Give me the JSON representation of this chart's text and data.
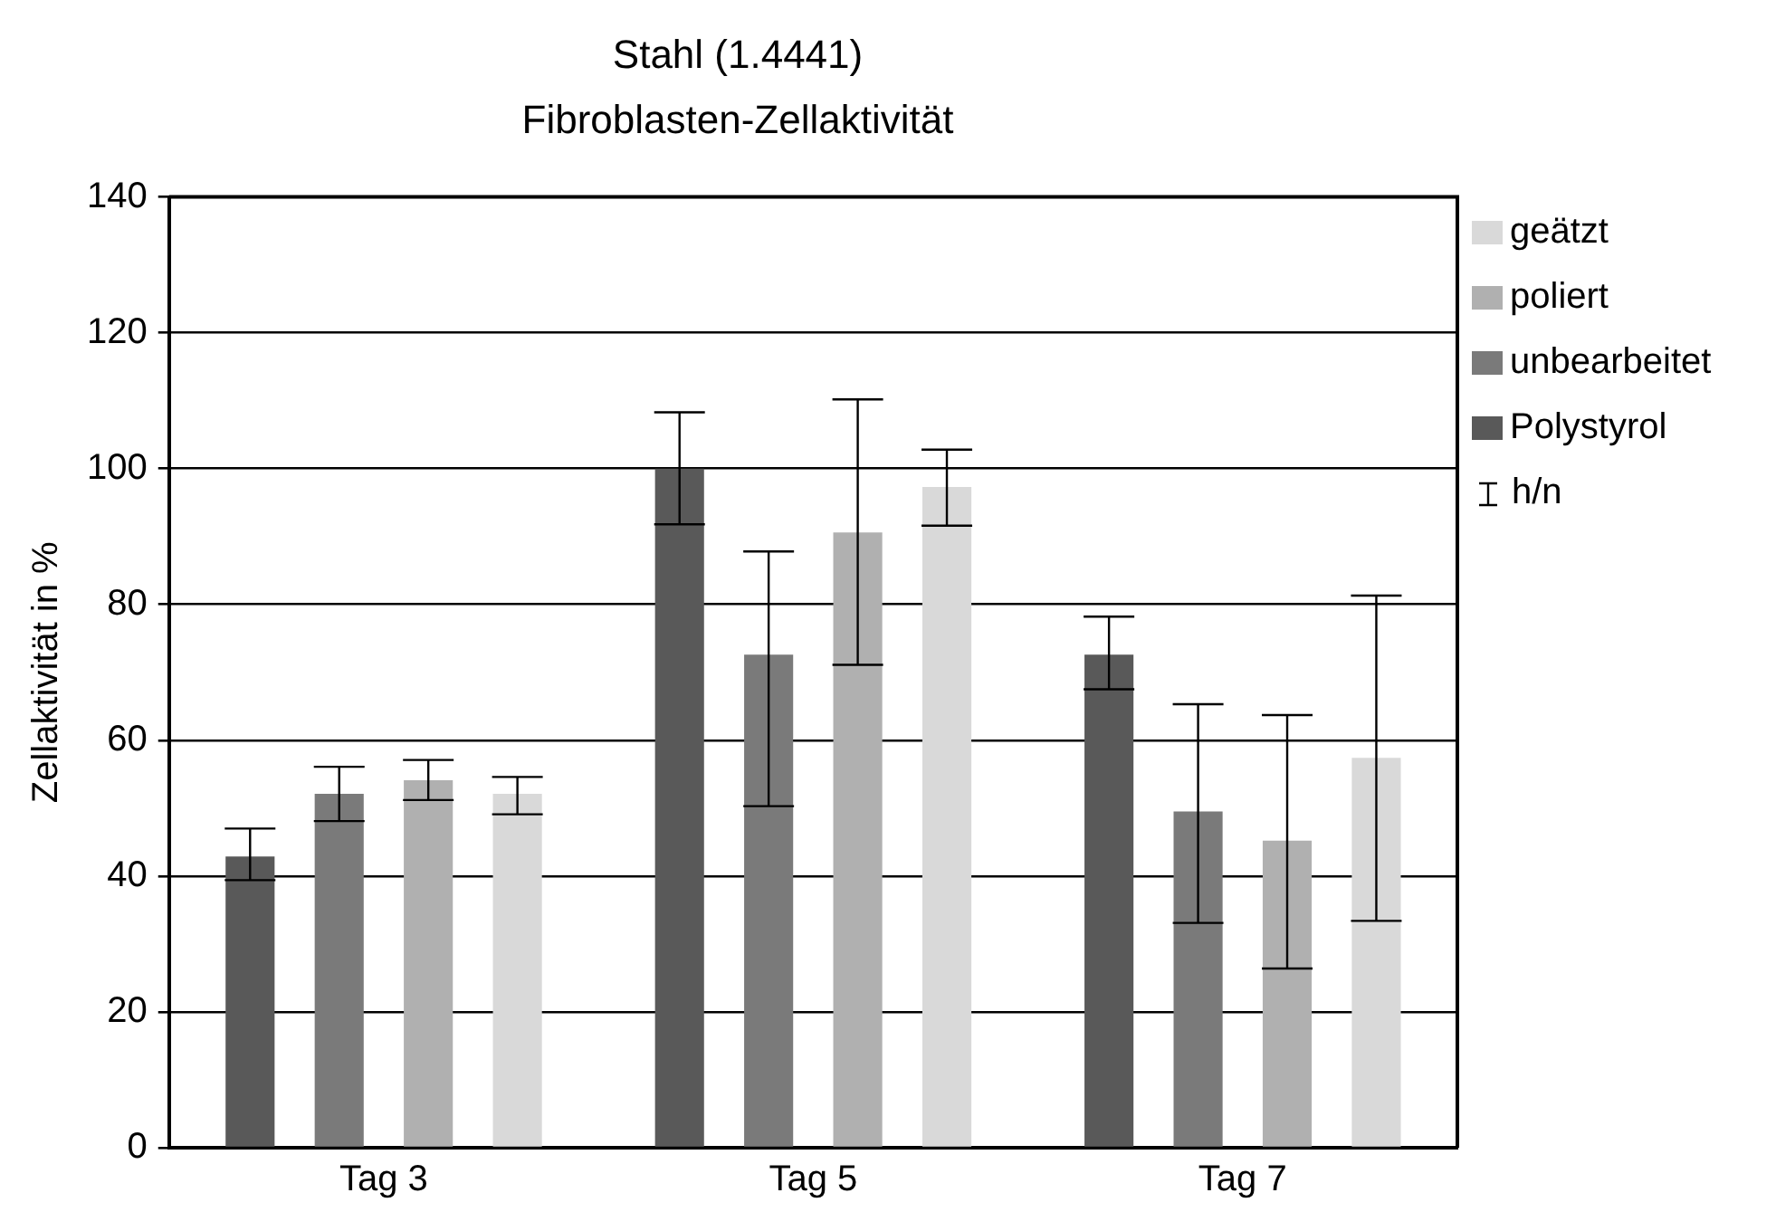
{
  "chart_data": {
    "type": "bar",
    "title": "Stahl (1.4441)",
    "subtitle": "Fibroblasten-Zellaktivität",
    "ylabel": "Zellaktivität in %",
    "categories": [
      "Tag 3",
      "Tag 5",
      "Tag 7"
    ],
    "series": [
      {
        "name": "Polystyrol",
        "color": "#595959",
        "values": [
          42.9,
          100,
          72.6
        ],
        "errors": [
          [
            39.4,
            47
          ],
          [
            91.8,
            108.3
          ],
          [
            67.5,
            78.2
          ]
        ]
      },
      {
        "name": "unbearbeitet",
        "color": "#7a7a7a",
        "values": [
          52.1,
          72.6,
          49.5
        ],
        "errors": [
          [
            48.1,
            56.1
          ],
          [
            50.3,
            87.8
          ],
          [
            33.1,
            65.3
          ]
        ]
      },
      {
        "name": "poliert",
        "color": "#b0b0b0",
        "values": [
          54.1,
          90.6,
          45.2
        ],
        "errors": [
          [
            51.2,
            57.1
          ],
          [
            71.1,
            110.2
          ],
          [
            26.4,
            63.7
          ]
        ]
      },
      {
        "name": "geätzt",
        "color": "#d9d9d9",
        "values": [
          52.1,
          97.3,
          57.4
        ],
        "errors": [
          [
            49.1,
            54.6
          ],
          [
            91.6,
            102.8
          ],
          [
            33.4,
            81.3
          ]
        ]
      }
    ],
    "annotations": [
      "h/n"
    ],
    "ylim": [
      0,
      140
    ],
    "yticks": [
      0,
      20,
      40,
      60,
      80,
      100,
      120,
      140
    ],
    "grid": "y",
    "legend": "right"
  }
}
